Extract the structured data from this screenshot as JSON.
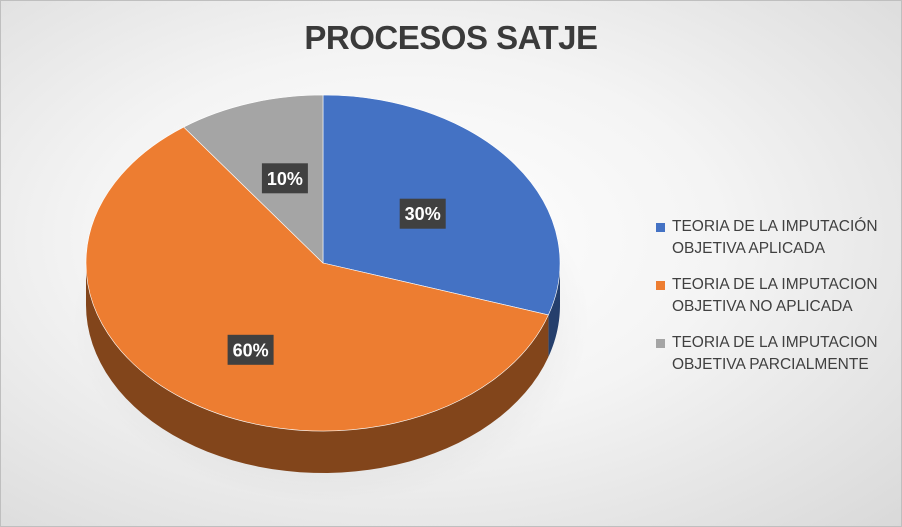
{
  "chart_data": {
    "type": "pie",
    "title": "PROCESOS SATJE",
    "categories": [
      "TEORIA DE LA IMPUTACIÓN OBJETIVA APLICADA",
      "TEORIA DE LA IMPUTACION OBJETIVA NO APLICADA",
      "TEORIA DE LA IMPUTACION OBJETIVA PARCIALMENTE"
    ],
    "values": [
      30,
      60,
      10
    ],
    "data_labels": [
      "30%",
      "60%",
      "10%"
    ],
    "colors": [
      "#4472C4",
      "#ED7D31",
      "#A5A5A5"
    ],
    "legend_position": "right",
    "style": "3d"
  },
  "legend": {
    "items": [
      {
        "line1": "TEORIA DE LA IMPUTACIÓN",
        "line2": "OBJETIVA APLICADA"
      },
      {
        "line1": "TEORIA DE LA IMPUTACION",
        "line2": "OBJETIVA NO APLICADA"
      },
      {
        "line1": "TEORIA DE LA IMPUTACION",
        "line2": "OBJETIVA PARCIALMENTE"
      }
    ]
  }
}
